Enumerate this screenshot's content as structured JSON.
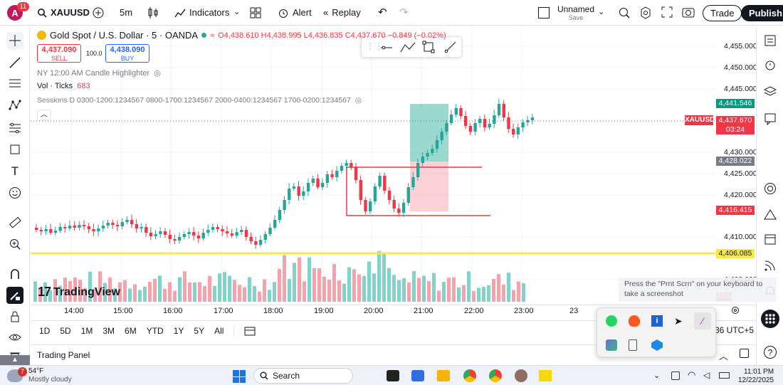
{
  "topbar": {
    "avatar_letter": "A",
    "notif_count": "11",
    "symbol": "XAUUSD",
    "interval": "5m",
    "indicators": "Indicators",
    "alert": "Alert",
    "replay": "Replay",
    "layout_name": "Unnamed",
    "layout_sub": "Save",
    "trade": "Trade",
    "publish": "Publish"
  },
  "legend": {
    "title": "Gold Spot / U.S. Dollar · 5 · OANDA",
    "ohlc": "O4,438.610 H4,438.995 L4,436.835 C4,437.670 −0.849 (−0.02%)",
    "sell_price": "4,437.090",
    "sell_label": "SELL",
    "spread": "100.0",
    "buy_price": "4,438.090",
    "buy_label": "BUY",
    "ind1": "NY 12:00 AM Candle Highlighter",
    "vol_label": "Vol · Ticks",
    "vol_value": "683",
    "sessions": "Sessions D 0300-1200:1234567 0800-1700:1234567 2000-0400:1234567 1700-0200:1234567"
  },
  "price_scale": {
    "ticks": [
      "4,455.000",
      "4,450.000",
      "4,445.000",
      "4,430.000",
      "4,425.000",
      "4,420.000",
      "4,410.000",
      "4,400.000"
    ],
    "labels": {
      "tp": "4,441.546",
      "symbol": "XAUUSD",
      "last": "4,437.670",
      "countdown": "03:24",
      "entry": "4,428.022",
      "stop": "4,416.415",
      "support": "4,406.085",
      "vol": "683"
    }
  },
  "time_axis": [
    "14:00",
    "15:00",
    "16:00",
    "17:00",
    "18:00",
    "19:00",
    "20:00",
    "21:00",
    "22:00",
    "23:00",
    "23"
  ],
  "ranges": [
    "1D",
    "5D",
    "1M",
    "3M",
    "6M",
    "YTD",
    "1Y",
    "5Y",
    "All"
  ],
  "timezone": "36 UTC+5",
  "trading_panel": "Trading Panel",
  "watermark": "TradingView",
  "notice": "Press the \"Prnt Scrn\" on your keyboard to take a screenshot",
  "weather": {
    "temp": "54°F",
    "desc": "Mostly cloudy",
    "badge": "7"
  },
  "taskbar": {
    "search": "Search",
    "time": "11:01 PM",
    "date": "12/22/2025"
  },
  "colors": {
    "up": "#26a69a",
    "down": "#f23645",
    "accent": "#2962ff"
  }
}
